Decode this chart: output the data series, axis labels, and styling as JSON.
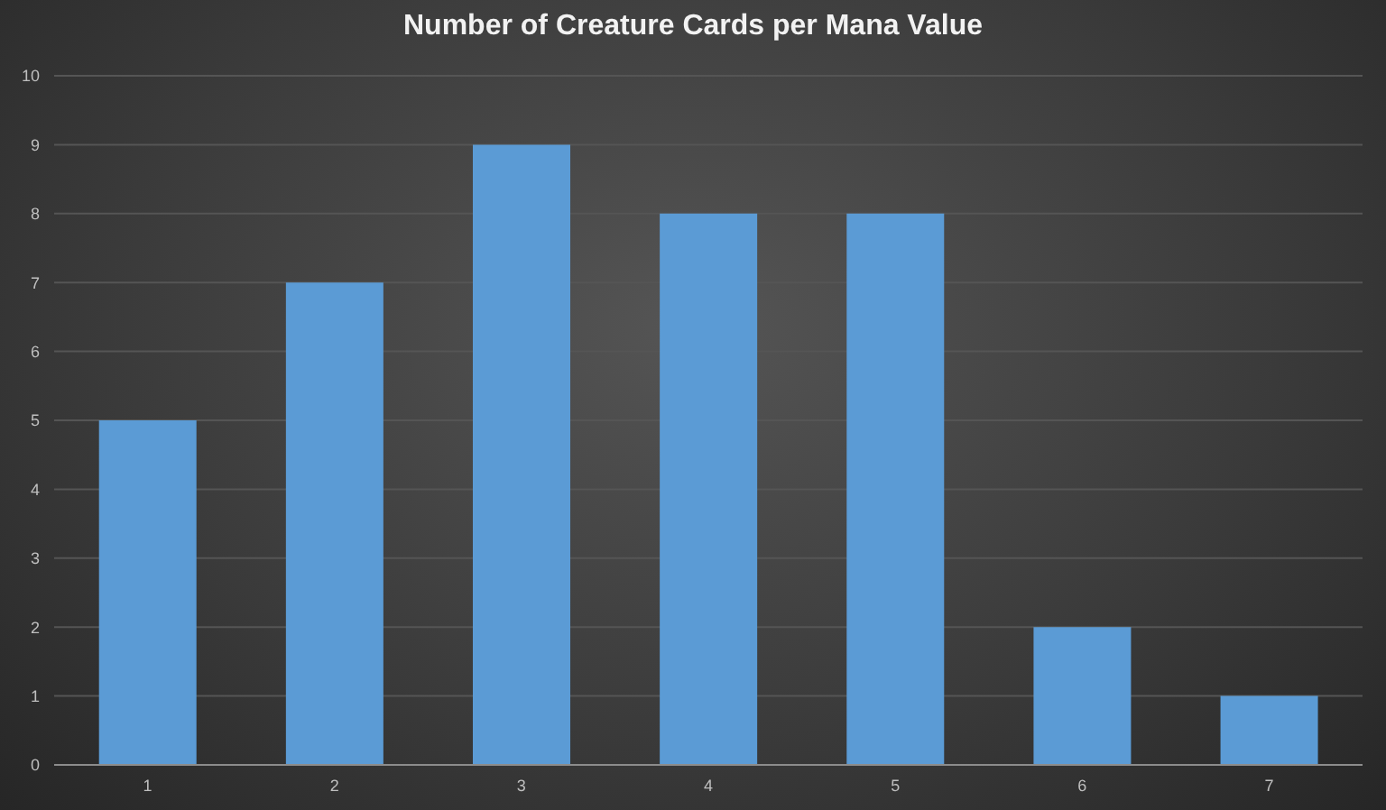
{
  "chart_data": {
    "type": "bar",
    "title": "Number of Creature Cards per Mana Value",
    "categories": [
      "1",
      "2",
      "3",
      "4",
      "5",
      "6",
      "7"
    ],
    "values": [
      5,
      7,
      9,
      8,
      8,
      2,
      1
    ],
    "color": "#5b9bd5",
    "ylim": [
      0,
      10
    ],
    "yticks": [
      0,
      1,
      2,
      3,
      4,
      5,
      6,
      7,
      8,
      9,
      10
    ],
    "grid": "y"
  }
}
